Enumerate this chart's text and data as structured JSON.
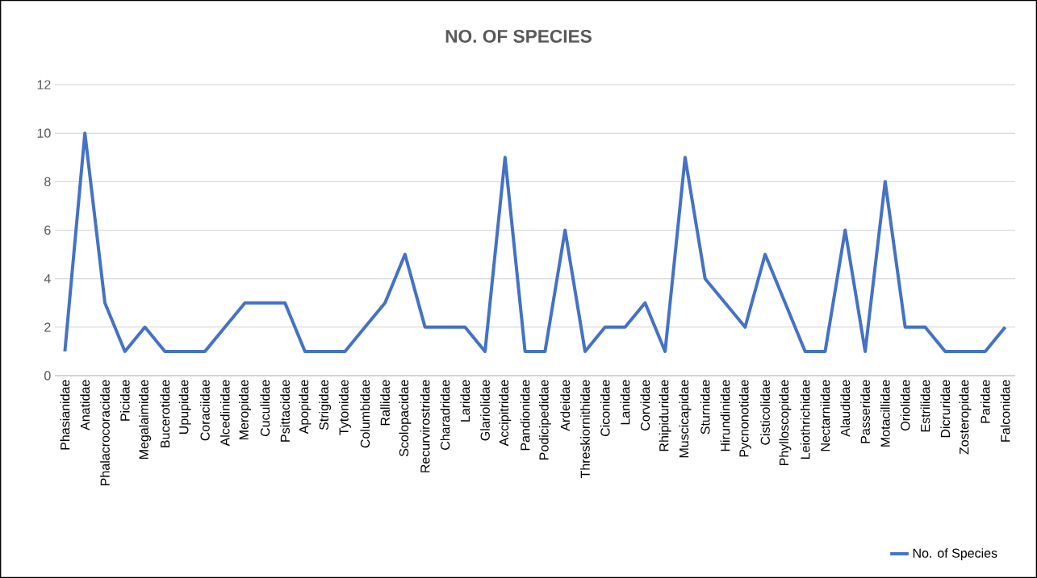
{
  "chart_data": {
    "type": "line",
    "title": "NO. OF SPECIES",
    "categories": [
      "Phasianidae",
      "Anatidae",
      "Phalacrocoracidae",
      "Picidae",
      "Megalaimidae",
      "Bucerotidae",
      "Upupidae",
      "Coraciidae",
      "Alcedinidae",
      "Meropidae",
      "Cuculidae",
      "Psittacidae",
      "Apopidae",
      "Strigidae",
      "Tytonidae",
      "Columbidae",
      "Rallidae",
      "Scolopacidae",
      "Recurvirostridae",
      "Charadridae",
      "Laridae",
      "Glariolidae",
      "Accipitridae",
      "Pandionidae",
      "Podicipedidae",
      "Ardeidae",
      "Threskiornithidae",
      "Ciconidae",
      "Lanidae",
      "Corvidae",
      "Rhipiduridae",
      "Muscicapidae",
      "Sturnidae",
      "Hirundinidae",
      "Pycnonotidae",
      "Cisticolidae",
      "Phylloscopidae",
      "Leiothrichidae",
      "Nectarniidae",
      "Alaudidae",
      "Passeridae",
      "Motacillidae",
      "Oriolidae",
      "Estrilidae",
      "Dicruridae",
      "Zosteropidae",
      "Paridae",
      "Falconidae"
    ],
    "series": [
      {
        "name": "No. of Species",
        "color": "#4472c4",
        "values": [
          1,
          10,
          3,
          1,
          2,
          1,
          1,
          1,
          2,
          3,
          3,
          3,
          1,
          1,
          1,
          2,
          3,
          5,
          2,
          2,
          2,
          1,
          9,
          1,
          1,
          6,
          1,
          2,
          2,
          3,
          1,
          9,
          4,
          3,
          2,
          5,
          3,
          1,
          1,
          6,
          1,
          8,
          2,
          2,
          1,
          1,
          1,
          2
        ]
      }
    ],
    "ylim": [
      0,
      12
    ],
    "yticks": [
      0,
      2,
      4,
      6,
      8,
      10,
      12
    ],
    "grid": "y",
    "legend": "bottom right",
    "marker": "none",
    "line_style": "solid"
  }
}
